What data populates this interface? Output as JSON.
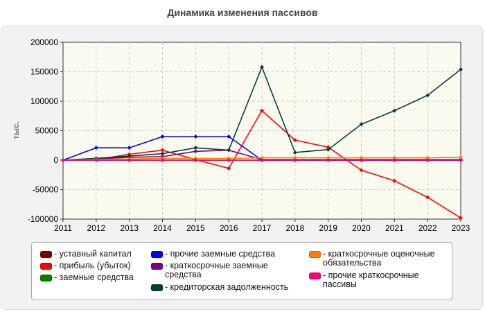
{
  "chart_data": {
    "type": "line",
    "title": "Динамика изменения пассивов",
    "ylabel": "тыс.",
    "xlabel": "",
    "x": [
      "2011",
      "2012",
      "2013",
      "2014",
      "2015",
      "2016",
      "2017",
      "2018",
      "2019",
      "2020",
      "2021",
      "2022",
      "2023"
    ],
    "ylim": [
      -100000,
      200000
    ],
    "yticks": [
      200000,
      150000,
      100000,
      50000,
      0,
      -50000,
      -100000
    ],
    "ytick_labels": [
      "200000",
      "150000",
      "100000",
      "50000",
      "0",
      "-50000",
      "-100000"
    ],
    "grid": true,
    "legend_position": "bottom",
    "series": [
      {
        "name": "- уставный капитал",
        "color": "#800000",
        "values": [
          0,
          0,
          0,
          0,
          0,
          0,
          0,
          0,
          0,
          0,
          0,
          0,
          0
        ]
      },
      {
        "name": "- прибыль (убыток)",
        "color": "#ff0000",
        "values": [
          0,
          1000,
          10000,
          17000,
          1000,
          -14000,
          84000,
          34000,
          22000,
          -17000,
          -35000,
          -63000,
          -98000
        ]
      },
      {
        "name": "- заемные средства",
        "color": "#008000",
        "values": [
          0,
          0,
          0,
          0,
          0,
          0,
          0,
          0,
          0,
          0,
          0,
          0,
          0
        ]
      },
      {
        "name": "- прочие заемные средства",
        "color": "#0000ff",
        "values": [
          0,
          21000,
          21000,
          40000,
          40000,
          40000,
          0,
          0,
          0,
          0,
          0,
          0,
          0
        ]
      },
      {
        "name": "- краткосрочные заемные средства",
        "color": "#800080",
        "values": [
          0,
          2000,
          5000,
          6000,
          15000,
          17000,
          1000,
          1000,
          1000,
          1000,
          1000,
          1000,
          1000
        ]
      },
      {
        "name": "- кредиторская задолженность",
        "color": "#004040",
        "values": [
          0,
          3000,
          7000,
          11000,
          21000,
          17000,
          158000,
          13000,
          18000,
          61000,
          84000,
          110000,
          154000
        ]
      },
      {
        "name": "- краткосрочные оценочные обязательства",
        "color": "#ff8000",
        "values": [
          0,
          1000,
          2000,
          3000,
          3000,
          3000,
          4000,
          4000,
          4000,
          4000,
          4000,
          4000,
          5000
        ]
      },
      {
        "name": "- прочие краткосрочные пассивы",
        "color": "#ff0080",
        "values": [
          0,
          0,
          0,
          0,
          0,
          0,
          0,
          0,
          0,
          0,
          0,
          0,
          0
        ]
      }
    ]
  }
}
